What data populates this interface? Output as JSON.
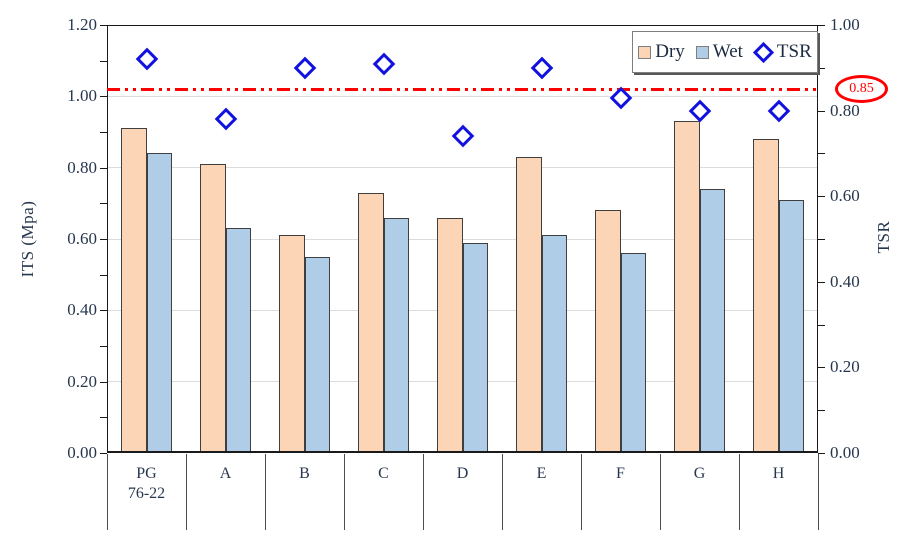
{
  "chart_data": {
    "type": "bar",
    "subtype": "grouped bars with scatter overlay on secondary axis",
    "title": "",
    "categories": [
      "PG\n76-22",
      "A",
      "B",
      "C",
      "D",
      "E",
      "F",
      "G",
      "H"
    ],
    "series": [
      {
        "name": "Dry",
        "type": "bar",
        "axis": "left",
        "color": "#FBD5B5",
        "values": [
          0.91,
          0.81,
          0.61,
          0.73,
          0.66,
          0.83,
          0.68,
          0.93,
          0.88
        ]
      },
      {
        "name": "Wet",
        "type": "bar",
        "axis": "left",
        "color": "#AFCDE7",
        "values": [
          0.84,
          0.63,
          0.55,
          0.66,
          0.59,
          0.61,
          0.56,
          0.74,
          0.71
        ]
      },
      {
        "name": "TSR",
        "type": "scatter",
        "marker": "open-diamond",
        "axis": "right",
        "color": "#1212E0",
        "values": [
          0.92,
          0.78,
          0.9,
          0.91,
          0.74,
          0.9,
          0.83,
          0.8,
          0.8
        ]
      }
    ],
    "left_axis": {
      "label": "ITS (Mpa)",
      "min": 0.0,
      "max": 1.2,
      "major": 0.2,
      "minor": 0.1,
      "tick_labels": [
        "0.00",
        "0.20",
        "0.40",
        "0.60",
        "0.80",
        "1.00",
        "1.20"
      ]
    },
    "right_axis": {
      "label": "TSR",
      "min": 0.0,
      "max": 1.0,
      "major": 0.2,
      "minor": 0.1,
      "tick_labels": [
        "0.00",
        "0.20",
        "0.40",
        "0.60",
        "0.80",
        "1.00"
      ]
    },
    "threshold": {
      "value": 0.85,
      "axis": "right",
      "label": "0.85",
      "color": "#FF0000",
      "style": "dash-dot-dot",
      "annotation": "red oval around 0.85 at right edge"
    },
    "legend": {
      "entries": [
        "Dry",
        "Wet",
        "TSR"
      ],
      "position": "top-right",
      "border": true
    },
    "grid": "horizontal major gridlines only",
    "colors": {
      "dry_fill": "#FBD5B5",
      "wet_fill": "#AFCDE7",
      "bar_border": "#3F3F3F",
      "tsr_marker": "#1212E0",
      "threshold": "#FF0000",
      "text": "#26364E",
      "gridline": "#DCDCDC",
      "axis_line": "#1a1a1a"
    }
  }
}
